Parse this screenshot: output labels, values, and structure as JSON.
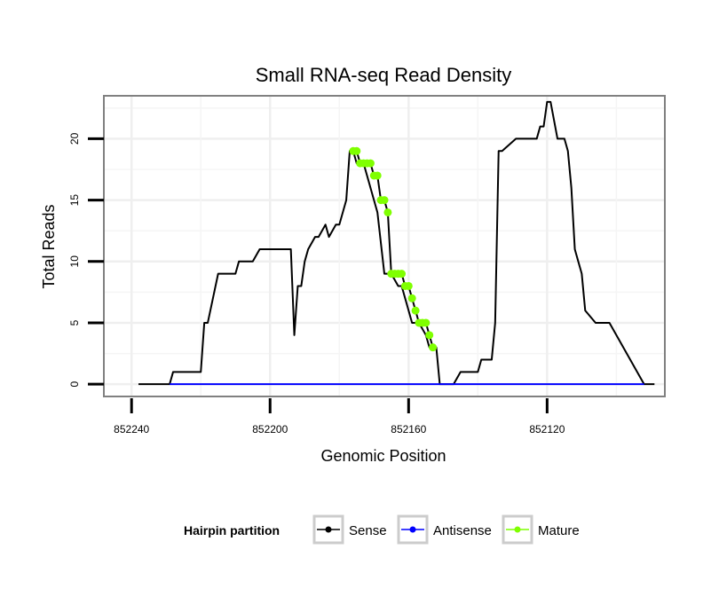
{
  "chart_data": {
    "type": "line",
    "title": "Small RNA-seq Read Density",
    "xlabel": "Genomic Position",
    "ylabel": "Total Reads",
    "xlim": [
      852248,
      852086
    ],
    "ylim": [
      -1,
      23.5
    ],
    "x_reversed": true,
    "x_ticks": [
      852240,
      852200,
      852160,
      852120
    ],
    "x_tick_labels": [
      "852240",
      "852200",
      "852160",
      "852120"
    ],
    "y_ticks": [
      0,
      5,
      10,
      15,
      20
    ],
    "y_tick_labels": [
      "0",
      "5",
      "10",
      "15",
      "20"
    ],
    "grid": true,
    "legend": {
      "title": "Hairpin partition",
      "position": "bottom",
      "entries": [
        {
          "name": "Sense",
          "color": "#000000"
        },
        {
          "name": "Antisense",
          "color": "#0000ff"
        },
        {
          "name": "Mature",
          "color": "#7fff00"
        }
      ]
    },
    "series": [
      {
        "name": "Sense",
        "color": "#000000",
        "x": [
          852238,
          852229,
          852228,
          852220,
          852219,
          852218,
          852215,
          852210,
          852209,
          852205,
          852204,
          852203,
          852194,
          852193,
          852192,
          852191,
          852190,
          852189,
          852187,
          852186,
          852184,
          852183,
          852181,
          852180,
          852178,
          852177,
          852176,
          852175,
          852174,
          852173,
          852172,
          852170,
          852169,
          852167,
          852166,
          852165,
          852163,
          852162,
          852161,
          852160,
          852159,
          852158,
          852157,
          852155,
          852154,
          852152,
          852151,
          852149,
          852148,
          852147,
          852145,
          852144,
          852140,
          852139,
          852136,
          852135,
          852134,
          852133,
          852129,
          852124,
          852123,
          852122,
          852121,
          852120,
          852119,
          852117,
          852116,
          852115,
          852114,
          852113,
          852112,
          852111,
          852110,
          852109,
          852106,
          852104,
          852102,
          852092,
          852089
        ],
        "y": [
          0,
          0,
          1,
          1,
          5,
          5,
          9,
          9,
          10,
          10,
          10.5,
          11,
          11,
          4,
          8,
          8,
          10,
          11,
          12,
          12,
          13,
          12,
          13,
          13,
          15,
          19,
          19,
          18,
          18,
          18,
          17,
          15,
          14,
          9,
          9,
          9,
          8,
          8,
          7,
          6,
          5,
          5,
          5,
          4,
          3,
          3,
          0,
          0,
          0,
          0,
          1,
          1,
          1,
          2,
          2,
          5,
          19,
          19,
          20,
          20,
          20,
          21,
          21,
          23,
          23,
          20,
          20,
          20,
          19,
          16,
          11,
          10,
          9,
          6,
          5,
          5,
          5,
          0,
          0
        ]
      },
      {
        "name": "Antisense",
        "color": "#0000ff",
        "x": [
          852229,
          852092
        ],
        "y": [
          0,
          0
        ]
      },
      {
        "name": "Mature",
        "color": "#7fff00",
        "x": [
          852176,
          852175,
          852174,
          852173,
          852172,
          852171,
          852170,
          852169,
          852168,
          852167,
          852166,
          852165,
          852164,
          852163,
          852162,
          852161,
          852160,
          852159,
          852158,
          852157,
          852156,
          852155,
          852154,
          852153
        ],
        "y": [
          19,
          19,
          18,
          18,
          18,
          18,
          17,
          17,
          15,
          15,
          14,
          9,
          9,
          9,
          9,
          8,
          8,
          7,
          6,
          5,
          5,
          5,
          4,
          3
        ]
      }
    ]
  }
}
